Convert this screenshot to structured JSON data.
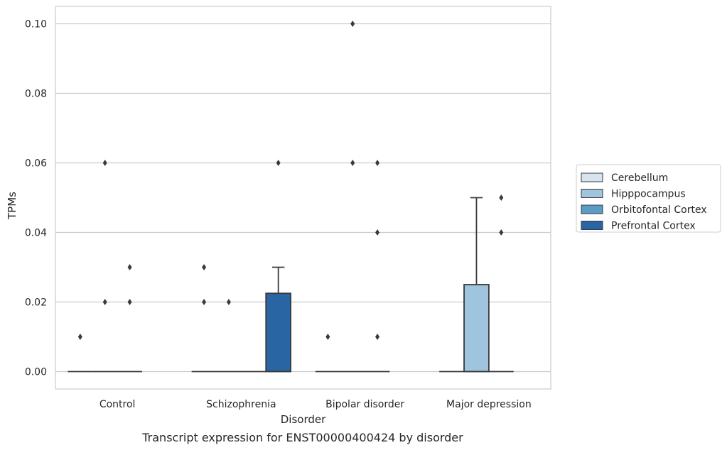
{
  "chart_data": {
    "type": "box",
    "caption": "Transcript expression for ENST00000400424 by disorder",
    "xlabel": "Disorder",
    "ylabel": "TPMs",
    "ylim": [
      -0.005,
      0.105
    ],
    "yticks": [
      0.0,
      0.02,
      0.04,
      0.06,
      0.08,
      0.1
    ],
    "ytick_labels": [
      "0.00",
      "0.02",
      "0.04",
      "0.06",
      "0.08",
      "0.10"
    ],
    "grid": "horizontal",
    "legend_position": "right",
    "categories": [
      "Control",
      "Schizophrenia",
      "Bipolar disorder",
      "Major depression"
    ],
    "series": [
      {
        "name": "Cerebellum",
        "color": "#d6e4f0",
        "boxes": [
          {
            "q1": 0,
            "median": 0,
            "q3": 0,
            "whisker_low": 0,
            "whisker_high": 0,
            "outliers": [
              0.01
            ]
          },
          {
            "q1": 0,
            "median": 0,
            "q3": 0,
            "whisker_low": 0,
            "whisker_high": 0,
            "outliers": [
              0.02,
              0.03
            ]
          },
          {
            "q1": 0,
            "median": 0,
            "q3": 0,
            "whisker_low": 0,
            "whisker_high": 0,
            "outliers": [
              0.01
            ]
          },
          {
            "q1": 0,
            "median": 0,
            "q3": 0,
            "whisker_low": 0,
            "whisker_high": 0,
            "outliers": []
          }
        ]
      },
      {
        "name": "Hipppocampus",
        "color": "#9fc5de",
        "boxes": [
          {
            "q1": 0,
            "median": 0,
            "q3": 0,
            "whisker_low": 0,
            "whisker_high": 0,
            "outliers": [
              0.02,
              0.06
            ]
          },
          {
            "q1": 0,
            "median": 0,
            "q3": 0,
            "whisker_low": 0,
            "whisker_high": 0,
            "outliers": [
              0.02
            ]
          },
          {
            "q1": 0,
            "median": 0,
            "q3": 0,
            "whisker_low": 0,
            "whisker_high": 0,
            "outliers": [
              0.06,
              0.1
            ]
          },
          {
            "q1": 0,
            "median": 0,
            "q3": 0.025,
            "whisker_low": 0,
            "whisker_high": 0.05,
            "outliers": []
          }
        ]
      },
      {
        "name": "Orbitofontal Cortex",
        "color": "#5b9cc6",
        "boxes": [
          {
            "q1": 0,
            "median": 0,
            "q3": 0,
            "whisker_low": 0,
            "whisker_high": 0,
            "outliers": [
              0.02,
              0.03
            ]
          },
          {
            "q1": 0,
            "median": 0,
            "q3": 0,
            "whisker_low": 0,
            "whisker_high": 0,
            "outliers": []
          },
          {
            "q1": 0,
            "median": 0,
            "q3": 0,
            "whisker_low": 0,
            "whisker_high": 0,
            "outliers": [
              0.01,
              0.04,
              0.06
            ]
          },
          {
            "q1": 0,
            "median": 0,
            "q3": 0,
            "whisker_low": 0,
            "whisker_high": 0,
            "outliers": [
              0.04,
              0.05
            ]
          }
        ]
      },
      {
        "name": "Prefrontal Cortex",
        "color": "#2a65a3",
        "boxes": [
          null,
          {
            "q1": 0,
            "median": 0,
            "q3": 0.0225,
            "whisker_low": 0,
            "whisker_high": 0.03,
            "outliers": [
              0.06
            ]
          },
          null,
          null
        ]
      }
    ]
  }
}
